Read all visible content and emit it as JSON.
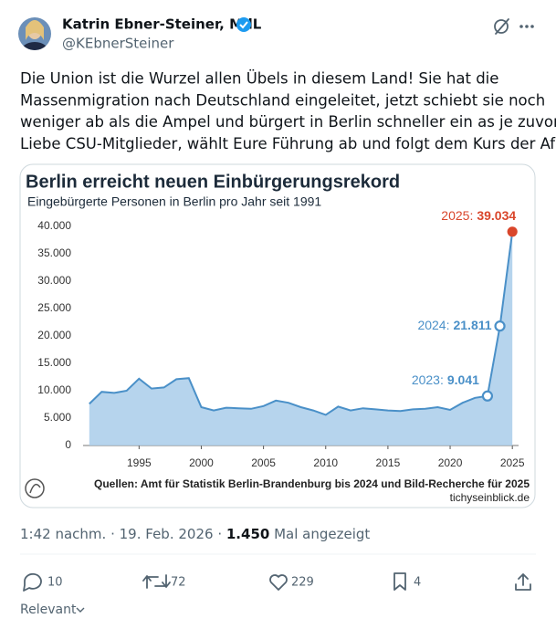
{
  "tweet": {
    "author_name": "Katrin Ebner-Steiner, MdL",
    "handle": "@KEbnerSteiner",
    "text_lines": [
      "Die Union ist die Wurzel allen Übels in diesem Land! Sie hat die",
      "Massenmigration nach Deutschland eingeleitet, jetzt schiebt sie noch",
      "weniger ab als die Ampel und bürgert in Berlin schneller ein as je zuvor!",
      "Liebe CSU-Mitglieder, wählt Eure Führung ab und folgt dem Kurs der AfD!"
    ],
    "time": "1:42 nachm.",
    "separator": "·",
    "date": "19. Feb. 2026",
    "views": "1.450",
    "views_label": "Mal angezeigt",
    "replies": "10",
    "reposts": "72",
    "likes": "229",
    "bookmarks": "4",
    "sort": "Relevant"
  },
  "chart_data": {
    "type": "area",
    "title": "Berlin erreicht neuen Einbürgerungsrekord",
    "subtitle": "Eingebürgerte Personen in Berlin pro Jahr seit 1991",
    "source": "Quellen: Amt für Statistik Berlin-Brandenburg bis 2024 und Bild-Recherche für 2025",
    "publisher": "tichyseinblick.de",
    "x": [
      1991,
      1992,
      1993,
      1994,
      1995,
      1996,
      1997,
      1998,
      1999,
      2000,
      2001,
      2002,
      2003,
      2004,
      2005,
      2006,
      2007,
      2008,
      2009,
      2010,
      2011,
      2012,
      2013,
      2014,
      2015,
      2016,
      2017,
      2018,
      2019,
      2020,
      2021,
      2022,
      2023,
      2024,
      2025
    ],
    "values": [
      7600,
      9800,
      9600,
      10000,
      12200,
      10400,
      10600,
      12100,
      12300,
      7000,
      6400,
      6900,
      6800,
      6700,
      7200,
      8200,
      7800,
      7000,
      6400,
      5600,
      7100,
      6400,
      6800,
      6600,
      6400,
      6300,
      6600,
      6700,
      7000,
      6500,
      7800,
      8700,
      9041,
      21811,
      39034
    ],
    "label_prefixes": [
      null,
      null,
      null,
      null,
      null,
      null,
      null,
      null,
      null,
      null,
      null,
      null,
      null,
      null,
      null,
      null,
      null,
      null,
      null,
      null,
      null,
      null,
      null,
      null,
      null,
      null,
      null,
      null,
      null,
      null,
      null,
      null,
      "2023:",
      "2024:",
      "2025:"
    ],
    "value_labels": [
      null,
      null,
      null,
      null,
      null,
      null,
      null,
      null,
      null,
      null,
      null,
      null,
      null,
      null,
      null,
      null,
      null,
      null,
      null,
      null,
      null,
      null,
      null,
      null,
      null,
      null,
      null,
      null,
      null,
      null,
      null,
      null,
      "9.041",
      "21.811",
      "39.034"
    ],
    "color": "#4a90c8",
    "fill_color": "#a9cdea",
    "highlight_color": "#d9462b",
    "xlim": [
      1990.5,
      2025.5
    ],
    "xticks": [
      1995,
      2000,
      2005,
      2010,
      2015,
      2020,
      2025
    ],
    "ylim": [
      0,
      42000
    ],
    "yticks": [
      0,
      {
        "value": 5000,
        "label": "5.000"
      },
      {
        "value": 10000,
        "label": "10.000"
      },
      {
        "value": 15000,
        "label": "15.000"
      },
      {
        "value": 20000,
        "label": "20.000"
      },
      {
        "value": 25000,
        "label": "25.000"
      },
      {
        "value": 30000,
        "label": "30.000"
      },
      {
        "value": 35000,
        "label": "35.000"
      },
      {
        "value": 40000,
        "label": "40.000"
      }
    ],
    "grid": false
  }
}
